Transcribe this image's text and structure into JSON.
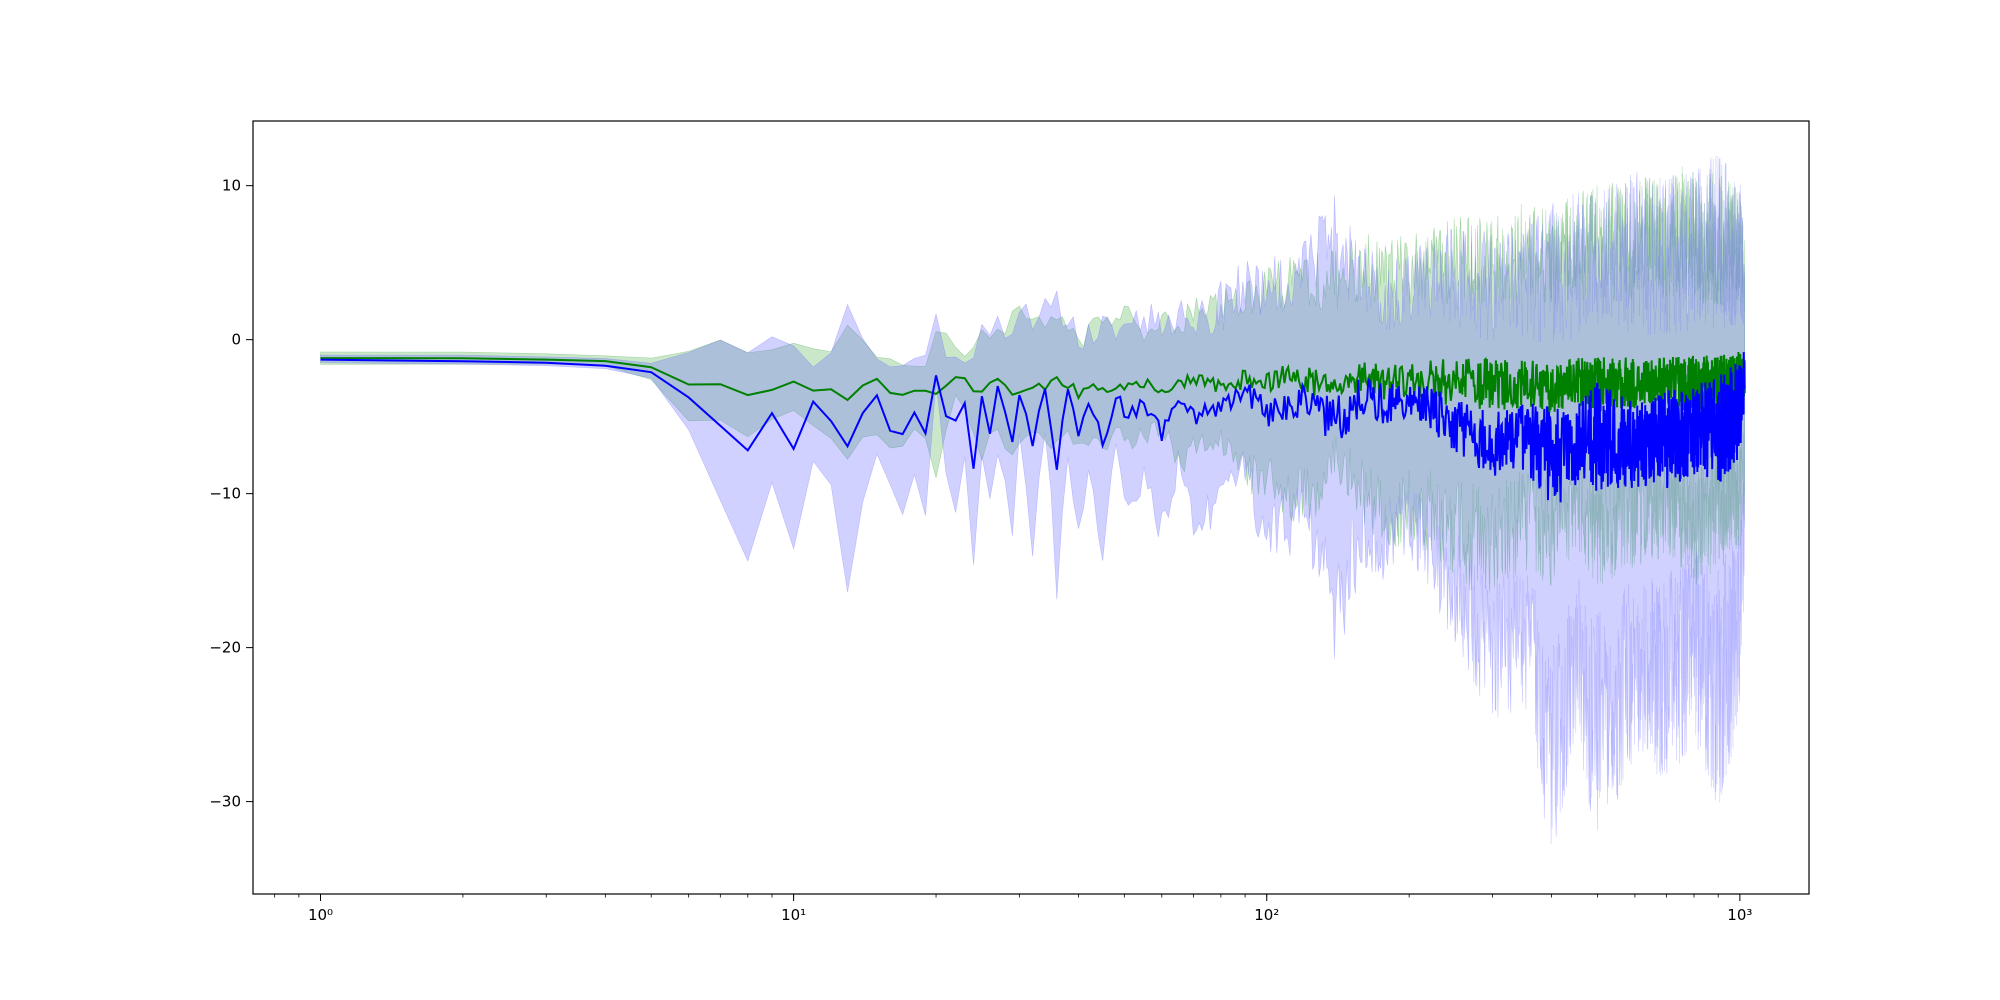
{
  "chart_data": {
    "type": "line",
    "title": "",
    "xlabel": "",
    "ylabel": "",
    "x_scale": "log",
    "xlim": [
      0.72,
      1400
    ],
    "ylim": [
      -36.0,
      14.2
    ],
    "x_ticks": [
      {
        "value": 1,
        "label": "10⁰"
      },
      {
        "value": 10,
        "label": "10¹"
      },
      {
        "value": 100,
        "label": "10²"
      },
      {
        "value": 1000,
        "label": "10³"
      }
    ],
    "y_ticks": [
      {
        "value": 10,
        "label": "10"
      },
      {
        "value": 0,
        "label": "0"
      },
      {
        "value": -10,
        "label": "−10"
      },
      {
        "value": -20,
        "label": "−20"
      },
      {
        "value": -30,
        "label": "−30"
      }
    ],
    "grid": false,
    "legend": "none",
    "x_range": [
      1,
      1024
    ],
    "series": [
      {
        "color": "#008000",
        "band_color": "#2ca02c",
        "x": [
          1,
          2,
          3,
          4,
          5,
          6,
          7,
          8,
          9,
          10,
          11,
          12,
          13,
          14,
          15,
          16,
          17,
          18,
          19,
          20,
          21,
          22,
          23,
          24,
          25,
          26,
          27,
          28,
          29,
          30,
          32,
          34,
          36,
          38,
          40,
          42,
          45,
          48,
          51,
          55,
          60,
          65,
          70,
          80,
          90,
          100,
          120,
          140,
          160,
          180,
          200,
          250,
          300,
          350,
          400,
          450,
          500,
          600,
          700,
          800,
          900,
          1000,
          1024
        ],
        "mean": [
          -1.2,
          -1.2,
          -1.3,
          -1.4,
          -1.8,
          -3.0,
          -3.0,
          -3.6,
          -3.3,
          -2.8,
          -3.3,
          -3.4,
          -3.8,
          -3.0,
          -2.6,
          -3.6,
          -3.5,
          -3.4,
          -3.3,
          -3.8,
          -3.1,
          -2.4,
          -2.6,
          -3.3,
          -3.4,
          -3.0,
          -2.7,
          -3.2,
          -3.5,
          -3.2,
          -2.9,
          -3.1,
          -2.6,
          -3.0,
          -3.4,
          -3.0,
          -3.5,
          -3.1,
          -2.9,
          -2.8,
          -3.2,
          -2.9,
          -2.7,
          -3.0,
          -2.6,
          -2.6,
          -2.7,
          -3.0,
          -2.5,
          -2.7,
          -2.6,
          -2.8,
          -2.9,
          -2.8,
          -3.1,
          -2.7,
          -2.9,
          -2.8,
          -2.7,
          -2.9,
          -2.8,
          -2.5,
          -2.3
        ],
        "lower": [
          -1.6,
          -1.6,
          -1.6,
          -1.7,
          -2.6,
          -5.5,
          -5.5,
          -6.5,
          -5.5,
          -5.0,
          -6.0,
          -7.0,
          -9.0,
          -7.0,
          -6.5,
          -8.0,
          -7.5,
          -6.0,
          -7.0,
          -9.5,
          -6.5,
          -4.0,
          -5.0,
          -7.0,
          -8.0,
          -7.0,
          -6.0,
          -7.5,
          -8.0,
          -7.0,
          -6.5,
          -7.5,
          -7.0,
          -6.0,
          -8.5,
          -7.0,
          -8.0,
          -6.5,
          -8.0,
          -7.0,
          -6.5,
          -9.0,
          -8.0,
          -7.5,
          -10.0,
          -11.0,
          -13.0,
          -9.0,
          -12.0,
          -14.0,
          -13.0,
          -16.0,
          -17.0,
          -15.0,
          -16.0,
          -14.0,
          -16.0,
          -15.0,
          -14.0,
          -16.0,
          -15.0,
          -14.0,
          -12.0
        ],
        "upper": [
          -0.8,
          -0.8,
          -0.9,
          -1.0,
          -1.1,
          -0.5,
          0.0,
          -0.5,
          -0.3,
          0.4,
          0.2,
          -0.5,
          1.2,
          0.0,
          -1.0,
          -1.2,
          -1.5,
          -1.5,
          -1.3,
          1.2,
          0.5,
          -0.3,
          -1.0,
          0.5,
          1.0,
          0.8,
          1.5,
          1.0,
          2.0,
          2.5,
          1.5,
          2.2,
          3.0,
          1.5,
          0.5,
          1.0,
          2.5,
          1.5,
          3.0,
          1.5,
          2.5,
          2.0,
          3.0,
          3.5,
          4.0,
          5.0,
          6.0,
          6.0,
          7.0,
          6.5,
          7.0,
          8.0,
          8.0,
          9.0,
          8.5,
          9.5,
          10.0,
          10.5,
          11.0,
          11.5,
          11.0,
          10.5,
          8.0
        ]
      },
      {
        "color": "#0000ff",
        "band_color": "#6666ff",
        "x": [
          1,
          2,
          3,
          4,
          5,
          6,
          7,
          8,
          9,
          10,
          11,
          12,
          13,
          14,
          15,
          16,
          17,
          18,
          19,
          20,
          21,
          22,
          23,
          24,
          25,
          26,
          27,
          28,
          29,
          30,
          32,
          34,
          36,
          38,
          40,
          42,
          45,
          48,
          51,
          55,
          60,
          65,
          70,
          80,
          90,
          100,
          120,
          140,
          160,
          180,
          200,
          250,
          300,
          350,
          400,
          450,
          500,
          600,
          700,
          800,
          900,
          1000,
          1024
        ],
        "mean": [
          -1.3,
          -1.4,
          -1.5,
          -1.7,
          -2.1,
          -3.8,
          -5.8,
          -7.0,
          -4.7,
          -7.1,
          -4.2,
          -5.5,
          -6.8,
          -5.0,
          -3.8,
          -5.8,
          -6.3,
          -4.5,
          -6.0,
          -2.3,
          -4.9,
          -5.5,
          -4.3,
          -8.5,
          -3.7,
          -6.0,
          -3.3,
          -4.8,
          -6.4,
          -3.5,
          -6.9,
          -3.0,
          -8.0,
          -3.4,
          -5.8,
          -4.2,
          -6.5,
          -3.6,
          -5.1,
          -4.0,
          -6.0,
          -3.9,
          -5.0,
          -4.6,
          -3.3,
          -4.8,
          -3.9,
          -5.2,
          -3.6,
          -4.3,
          -3.7,
          -5.5,
          -6.8,
          -6.2,
          -7.8,
          -6.9,
          -6.3,
          -6.8,
          -6.5,
          -6.0,
          -5.8,
          -4.5,
          -2.0
        ],
        "lower": [
          -1.5,
          -1.6,
          -1.7,
          -1.9,
          -2.5,
          -6.0,
          -11.0,
          -14.4,
          -9.8,
          -15.0,
          -8.0,
          -10.0,
          -17.5,
          -12.0,
          -8.0,
          -10.0,
          -11.5,
          -9.0,
          -12.5,
          -2.8,
          -10.0,
          -11.5,
          -9.0,
          -16.0,
          -8.0,
          -12.0,
          -7.5,
          -11.0,
          -14.0,
          -7.0,
          -15.0,
          -7.0,
          -17.0,
          -8.0,
          -13.0,
          -9.0,
          -15.0,
          -8.0,
          -12.0,
          -10.0,
          -14.0,
          -9.0,
          -13.0,
          -12.0,
          -10.0,
          -15.0,
          -14.0,
          -22.0,
          -15.0,
          -16.0,
          -14.0,
          -20.0,
          -25.0,
          -24.0,
          -34.0,
          -26.0,
          -33.0,
          -27.0,
          -29.0,
          -26.0,
          -30.5,
          -25.0,
          -15.0
        ],
        "upper": [
          -1.0,
          -1.0,
          -1.1,
          -1.2,
          -1.5,
          -0.5,
          0.0,
          0.3,
          0.5,
          0.7,
          -1.5,
          0.0,
          3.6,
          1.5,
          -0.5,
          -1.0,
          -1.5,
          -1.0,
          -0.5,
          1.8,
          0.3,
          -1.0,
          -1.5,
          0.5,
          1.5,
          0.5,
          2.0,
          1.5,
          2.5,
          3.5,
          2.0,
          3.0,
          3.5,
          2.0,
          1.0,
          2.0,
          3.0,
          2.0,
          3.5,
          2.0,
          3.0,
          2.5,
          3.5,
          4.0,
          5.5,
          5.5,
          8.0,
          9.5,
          6.5,
          5.0,
          6.0,
          7.5,
          7.0,
          8.0,
          9.0,
          9.5,
          10.0,
          11.0,
          10.5,
          11.5,
          12.0,
          11.0,
          6.0
        ]
      }
    ]
  }
}
